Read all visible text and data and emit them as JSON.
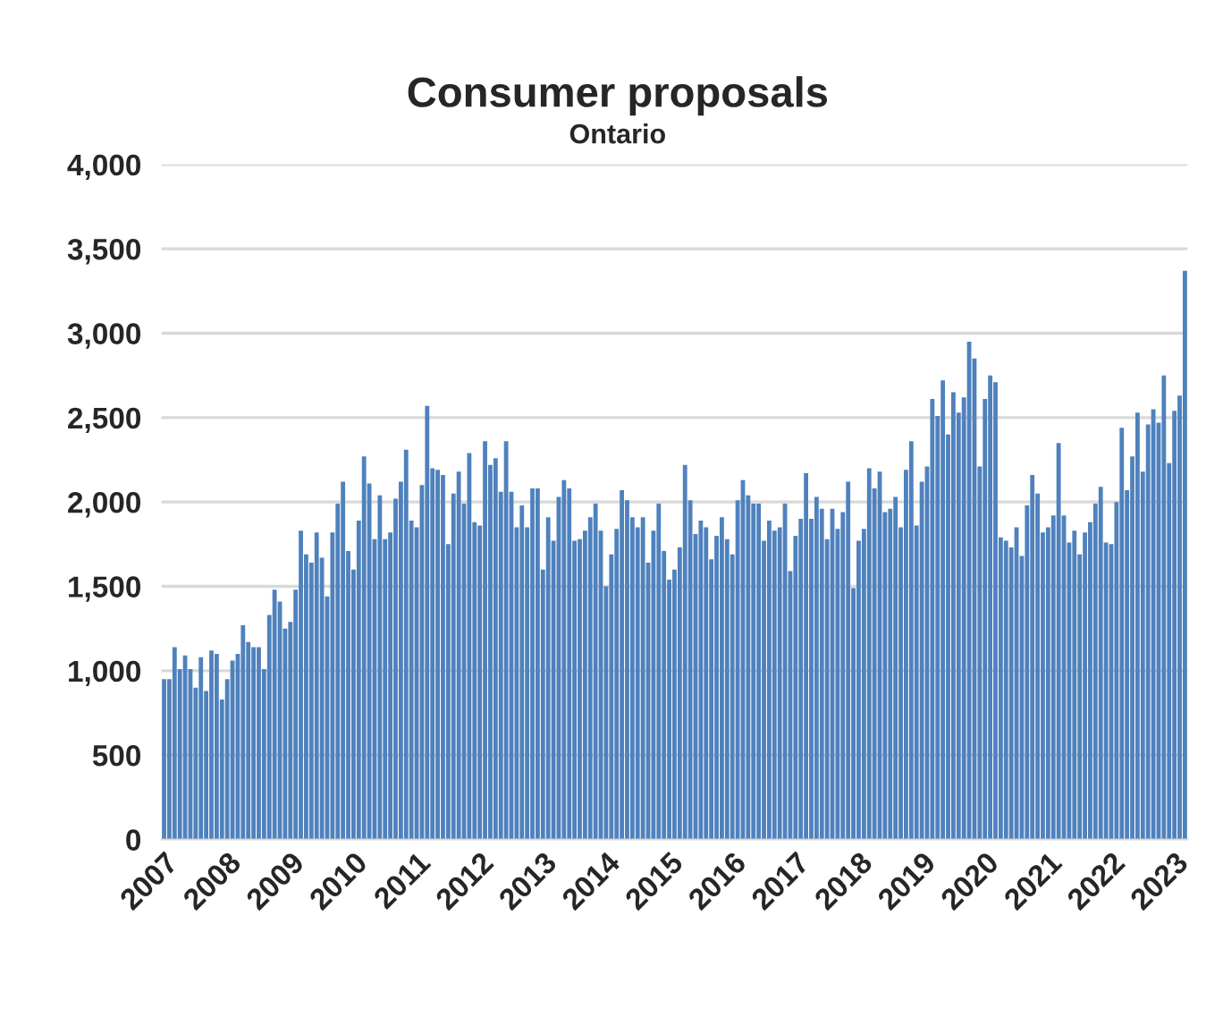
{
  "chart_data": {
    "type": "bar",
    "title": "Consumer proposals",
    "subtitle": "Ontario",
    "categories": [
      "2007",
      null,
      null,
      null,
      null,
      null,
      null,
      null,
      null,
      null,
      null,
      null,
      "2008",
      null,
      null,
      null,
      null,
      null,
      null,
      null,
      null,
      null,
      null,
      null,
      "2009",
      null,
      null,
      null,
      null,
      null,
      null,
      null,
      null,
      null,
      null,
      null,
      "2010",
      null,
      null,
      null,
      null,
      null,
      null,
      null,
      null,
      null,
      null,
      null,
      "2011",
      null,
      null,
      null,
      null,
      null,
      null,
      null,
      null,
      null,
      null,
      null,
      "2012",
      null,
      null,
      null,
      null,
      null,
      null,
      null,
      null,
      null,
      null,
      null,
      "2013",
      null,
      null,
      null,
      null,
      null,
      null,
      null,
      null,
      null,
      null,
      null,
      "2014",
      null,
      null,
      null,
      null,
      null,
      null,
      null,
      null,
      null,
      null,
      null,
      "2015",
      null,
      null,
      null,
      null,
      null,
      null,
      null,
      null,
      null,
      null,
      null,
      "2016",
      null,
      null,
      null,
      null,
      null,
      null,
      null,
      null,
      null,
      null,
      null,
      "2017",
      null,
      null,
      null,
      null,
      null,
      null,
      null,
      null,
      null,
      null,
      null,
      "2018",
      null,
      null,
      null,
      null,
      null,
      null,
      null,
      null,
      null,
      null,
      null,
      "2019",
      null,
      null,
      null,
      null,
      null,
      null,
      null,
      null,
      null,
      null,
      null,
      "2020",
      null,
      null,
      null,
      null,
      null,
      null,
      null,
      null,
      null,
      null,
      null,
      "2021",
      null,
      null,
      null,
      null,
      null,
      null,
      null,
      null,
      null,
      null,
      null,
      "2022",
      null,
      null,
      null,
      null,
      null,
      null,
      null,
      null,
      null,
      null,
      null,
      "2023",
      null,
      null
    ],
    "values": [
      950,
      950,
      1140,
      1010,
      1090,
      1010,
      900,
      1080,
      880,
      1120,
      1100,
      830,
      950,
      1060,
      1100,
      1270,
      1170,
      1140,
      1140,
      1010,
      1330,
      1480,
      1410,
      1250,
      1290,
      1480,
      1830,
      1690,
      1640,
      1820,
      1670,
      1440,
      1820,
      1990,
      2120,
      1710,
      1600,
      1890,
      2270,
      2110,
      1780,
      2040,
      1780,
      1820,
      2020,
      2120,
      2310,
      1890,
      1850,
      2100,
      2570,
      2200,
      2190,
      2160,
      1750,
      2050,
      2180,
      1990,
      2290,
      1880,
      1860,
      2360,
      2220,
      2260,
      2060,
      2360,
      2060,
      1850,
      1980,
      1850,
      2080,
      2080,
      1600,
      1910,
      1770,
      2030,
      2130,
      2080,
      1770,
      1780,
      1830,
      1910,
      1990,
      1830,
      1500,
      1690,
      1840,
      2070,
      2010,
      1910,
      1850,
      1910,
      1640,
      1830,
      1990,
      1710,
      1540,
      1600,
      1730,
      2220,
      2010,
      1810,
      1890,
      1850,
      1660,
      1800,
      1910,
      1780,
      1690,
      2010,
      2130,
      2040,
      1990,
      1990,
      1770,
      1890,
      1830,
      1850,
      1990,
      1590,
      1800,
      1900,
      2170,
      1900,
      2030,
      1960,
      1780,
      1960,
      1840,
      1940,
      2120,
      1490,
      1770,
      1840,
      2200,
      2080,
      2180,
      1940,
      1960,
      2030,
      1850,
      2190,
      2360,
      1860,
      2120,
      2210,
      2610,
      2510,
      2720,
      2400,
      2650,
      2530,
      2620,
      2950,
      2850,
      2210,
      2610,
      2750,
      2710,
      1790,
      1770,
      1730,
      1850,
      1680,
      1980,
      2160,
      2050,
      1820,
      1850,
      1920,
      2350,
      1920,
      1760,
      1830,
      1690,
      1820,
      1880,
      1990,
      2090,
      1760,
      1750,
      2000,
      2440,
      2070,
      2270,
      2530,
      2180,
      2460,
      2550,
      2470,
      2750,
      2230,
      2540,
      2630,
      3370
    ],
    "color": "#4f81bd",
    "ylim": [
      0,
      4000
    ],
    "yticks": [
      0,
      500,
      {
        "value": 1000,
        "label": "1,000"
      },
      {
        "value": 1500,
        "label": "1,500"
      },
      {
        "value": 2000,
        "label": "2,000"
      },
      {
        "value": 2500,
        "label": "2,500"
      },
      {
        "value": 3000,
        "label": "3,000"
      },
      {
        "value": 3500,
        "label": "3,500"
      },
      {
        "value": 4000,
        "label": "4,000"
      }
    ],
    "grid": "y",
    "legend": false
  }
}
